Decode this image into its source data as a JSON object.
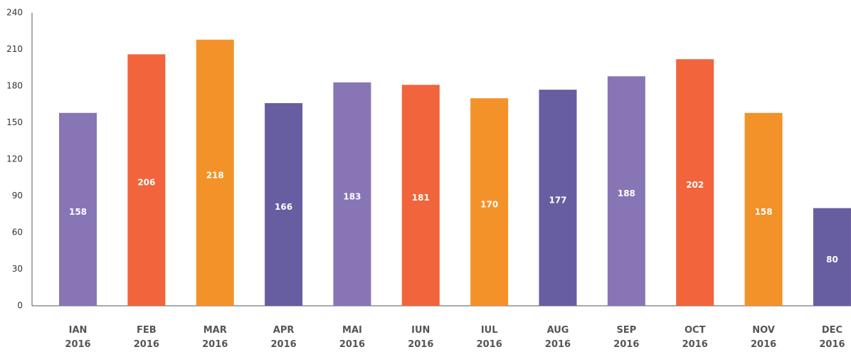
{
  "chart_data": {
    "type": "bar",
    "categories": [
      "IAN 2016",
      "FEB 2016",
      "MAR 2016",
      "APR 2016",
      "MAI 2016",
      "IUN 2016",
      "IUL 2016",
      "AUG 2016",
      "SEP 2016",
      "OCT 2016",
      "NOV 2016",
      "DEC 2016"
    ],
    "values": [
      158,
      206,
      218,
      166,
      183,
      181,
      170,
      177,
      188,
      202,
      158,
      80
    ],
    "colors": [
      "#8875b6",
      "#f2643b",
      "#f39229",
      "#675da1",
      "#8875b6",
      "#f2643b",
      "#f39229",
      "#675da1",
      "#8875b6",
      "#f2643b",
      "#f39229",
      "#675da1"
    ],
    "ylim": [
      0,
      240
    ],
    "yticks": [
      0,
      30,
      60,
      90,
      120,
      150,
      180,
      210,
      240
    ],
    "grid": false
  }
}
